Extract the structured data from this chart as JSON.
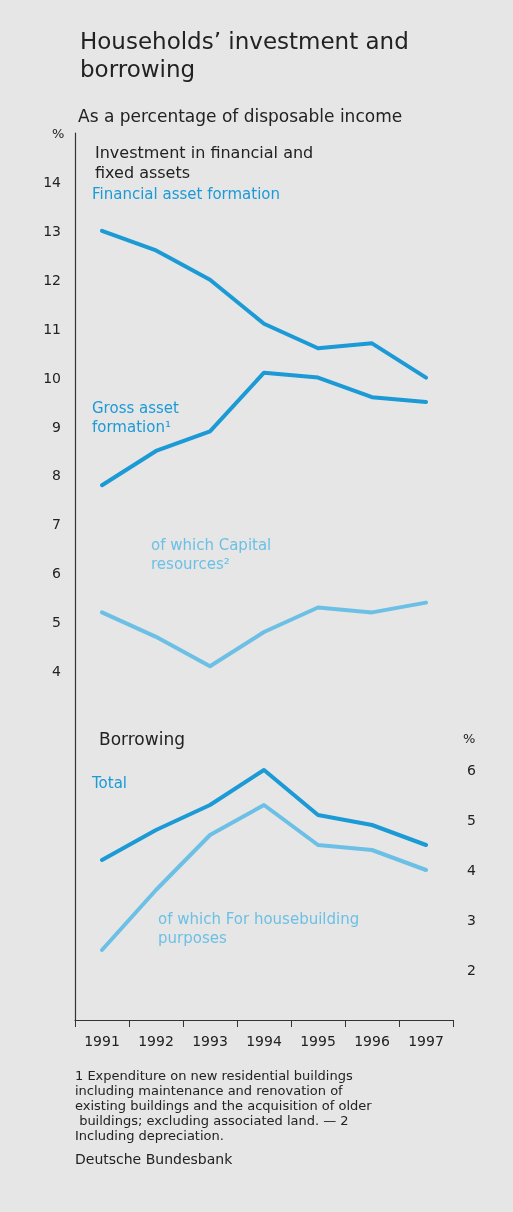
{
  "chart_data": [
    {
      "type": "line",
      "title": "Households’ investment and borrowing",
      "subtitle": "As a percentage of disposable income",
      "ylabel": "%",
      "annotations": [
        "Investment in financial and fixed assets"
      ],
      "categories": [
        "1991",
        "1992",
        "1993",
        "1994",
        "1995",
        "1996",
        "1997"
      ],
      "series": [
        {
          "name": "Financial asset formation",
          "color": "#1b9ad6",
          "values": [
            13.0,
            12.6,
            12.0,
            11.1,
            10.6,
            10.7,
            10.0
          ]
        },
        {
          "name": "Gross asset formation¹",
          "color": "#1b9ad6",
          "values": [
            7.8,
            8.5,
            8.9,
            10.1,
            10.0,
            9.6,
            9.5
          ]
        },
        {
          "name": "of which Capital resources²",
          "color": "#6cc0e5",
          "values": [
            5.2,
            4.7,
            4.1,
            4.8,
            5.3,
            5.2,
            5.4
          ]
        }
      ],
      "ylim": [
        3,
        15
      ],
      "yticks": [
        4,
        5,
        6,
        7,
        8,
        9,
        10,
        11,
        12,
        13,
        14
      ],
      "grid": false,
      "legend": false,
      "marker": "none",
      "line_style": "solid",
      "tick_labels": "y"
    },
    {
      "type": "line",
      "title": "Borrowing",
      "y2label": "%",
      "annotations": [
        "1 Expenditure on new residential buildings including maintenance and renovation of existing buildings and the acquisition of older buildings; excluding associated land. — 2 Including depreciation.",
        "Deutsche Bundesbank"
      ],
      "categories": [
        "1991",
        "1992",
        "1993",
        "1994",
        "1995",
        "1996",
        "1997"
      ],
      "series": [
        {
          "name": "Total",
          "color": "#1b9ad6",
          "axis": "y2",
          "values": [
            4.2,
            4.8,
            5.3,
            6.0,
            5.1,
            4.9,
            4.5
          ]
        },
        {
          "name": "of which For housebuilding purposes",
          "color": "#6cc0e5",
          "axis": "y2",
          "values": [
            2.4,
            3.6,
            4.7,
            5.3,
            4.5,
            4.4,
            4.0
          ]
        }
      ],
      "y2lim": [
        1,
        7
      ],
      "y2ticks": [
        2,
        3,
        4,
        5,
        6
      ],
      "grid": false,
      "legend": false,
      "marker": "none",
      "line_style": "solid"
    }
  ]
}
